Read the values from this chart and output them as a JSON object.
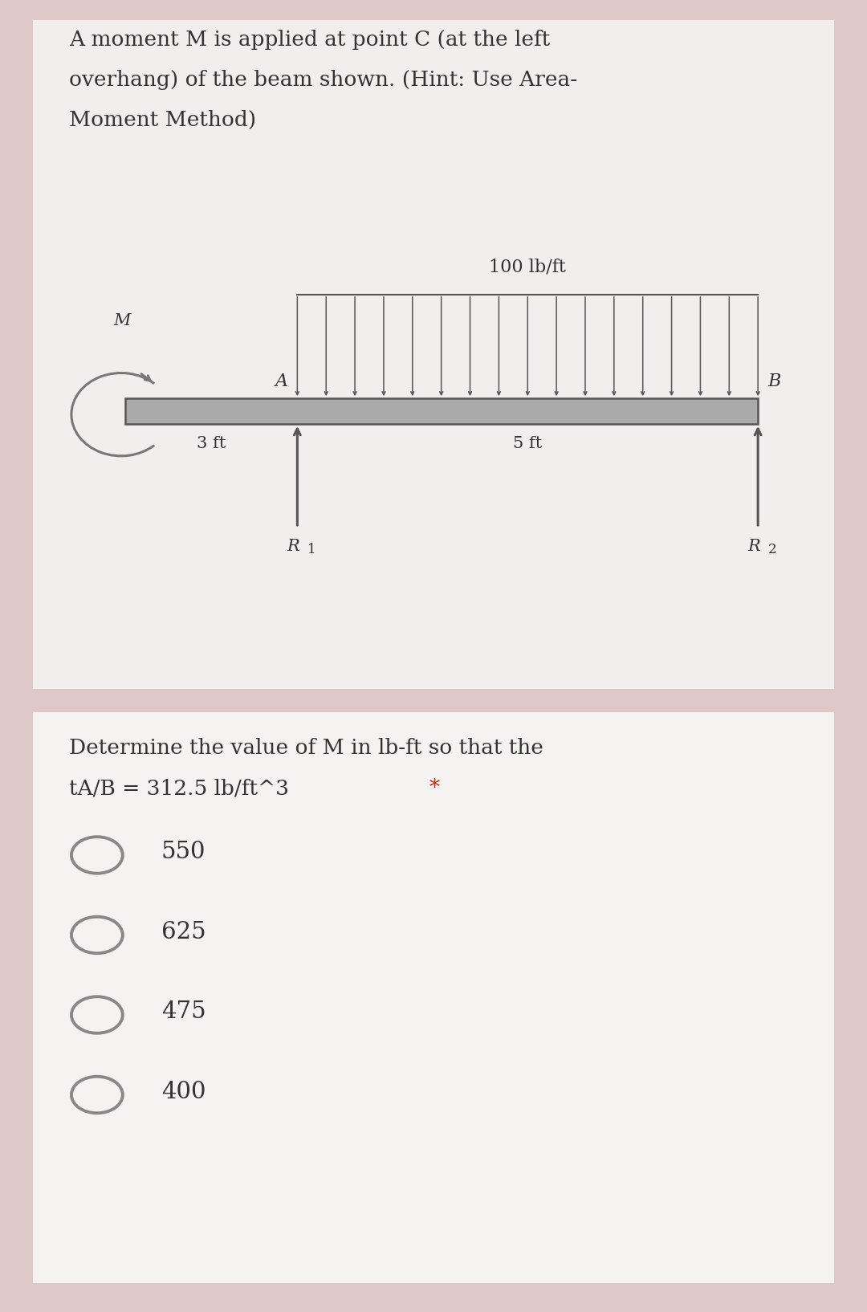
{
  "bg_outer": "#dfc8c8",
  "bg_card1": "#f3eeee",
  "bg_card2": "#f5f2f2",
  "title_line1": "A moment M is applied at point C (at the left",
  "title_line2": "overhang) of the beam shown. (Hint: Use Area-",
  "title_line3": "Moment Method)",
  "q_line1": "Determine the value of M in lb-ft so that the",
  "q_line2": "tA/B = 312.5 lb/ft^3 ",
  "asterisk": "*",
  "asterisk_color": "#cc2222",
  "choices": [
    "550",
    "625",
    "475",
    "400"
  ],
  "dist_load_label": "100 lb/ft",
  "label_A": "A",
  "label_B": "B",
  "label_M": "M",
  "label_3ft": "3 ft",
  "label_5ft": "5 ft",
  "label_R1": "R",
  "label_R1_sub": "1",
  "label_R2": "R",
  "label_R2_sub": "2",
  "beam_color": "#aaaaaa",
  "beam_edge_color": "#555555",
  "arrow_color": "#555555",
  "moment_color": "#777777",
  "text_color": "#333333",
  "font_size_title": 19,
  "font_size_label": 15,
  "font_size_choice": 21,
  "font_size_q": 19
}
